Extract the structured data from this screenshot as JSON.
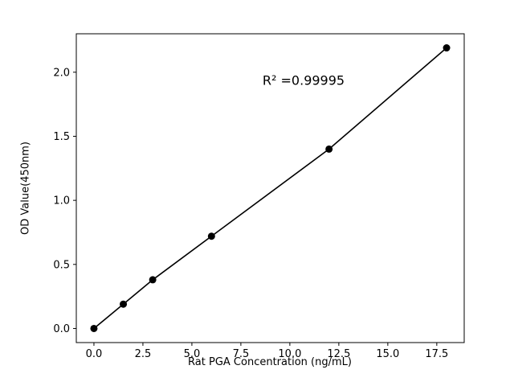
{
  "page": {
    "background_color": "#ffffff"
  },
  "chart_data": {
    "type": "scatter",
    "title": "",
    "xlabel": "Rat PGA Concentration (ng/mL)",
    "ylabel": "OD Value(450nm)",
    "annotation": "R² =0.99995",
    "x": [
      0,
      1.5,
      3,
      6,
      12,
      18
    ],
    "y": [
      0.0,
      0.19,
      0.38,
      0.72,
      1.4,
      2.19
    ],
    "xlim": [
      -0.9,
      18.9
    ],
    "ylim": [
      -0.11,
      2.3
    ],
    "xticks": [
      0.0,
      2.5,
      5.0,
      7.5,
      10.0,
      12.5,
      15.0,
      17.5
    ],
    "yticks": [
      0.0,
      0.5,
      1.0,
      1.5,
      2.0
    ],
    "xtick_labels": [
      "0.0",
      "2.5",
      "5.0",
      "7.5",
      "10.0",
      "12.5",
      "15.0",
      "17.5"
    ],
    "ytick_labels": [
      "0.0",
      "0.5",
      "1.0",
      "1.5",
      "2.0"
    ],
    "line_color": "#000000",
    "marker_color": "#000000",
    "marker_shape": "circle",
    "grid": false,
    "legend": "none"
  }
}
